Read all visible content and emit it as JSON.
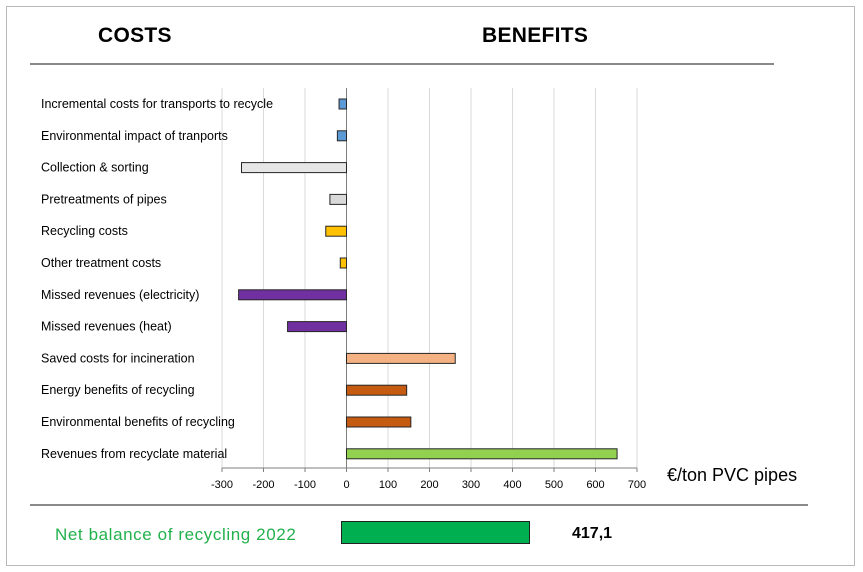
{
  "headers": {
    "costs": "COSTS",
    "benefits": "BENEFITS"
  },
  "unit_label": "€/ton PVC pipes",
  "net": {
    "label": "Net balance of recycling 2022",
    "value": 417.1,
    "value_text": "417,1",
    "color": "#00b050"
  },
  "chart_data": {
    "type": "bar",
    "orientation": "horizontal",
    "title": "",
    "xlabel": "€/ton PVC pipes",
    "ylabel": "",
    "xlim": [
      -300,
      700
    ],
    "xticks": [
      -300,
      -200,
      -100,
      0,
      100,
      200,
      300,
      400,
      500,
      600,
      700
    ],
    "grid": true,
    "categories": [
      "Incremental costs for transports to recycle",
      "Environmental impact of tranports",
      "Collection & sorting",
      "Pretreatments of pipes",
      "Recycling costs",
      "Other treatment costs",
      "Missed revenues (electricity)",
      "Missed revenues (heat)",
      "Saved costs for incineration",
      "Energy benefits of recycling",
      "Environmental benefits of recycling",
      "Revenues from recyclate material"
    ],
    "values": [
      -18,
      -22,
      -253,
      -40,
      -50,
      -15,
      -260,
      -142,
      262,
      145,
      155,
      652
    ],
    "colors": [
      "#5b9bd5",
      "#5b9bd5",
      "#e7e6e6",
      "#d9d9d9",
      "#ffc000",
      "#ffc000",
      "#7030a0",
      "#7030a0",
      "#f4b183",
      "#c55a11",
      "#c55a11",
      "#92d050"
    ]
  }
}
